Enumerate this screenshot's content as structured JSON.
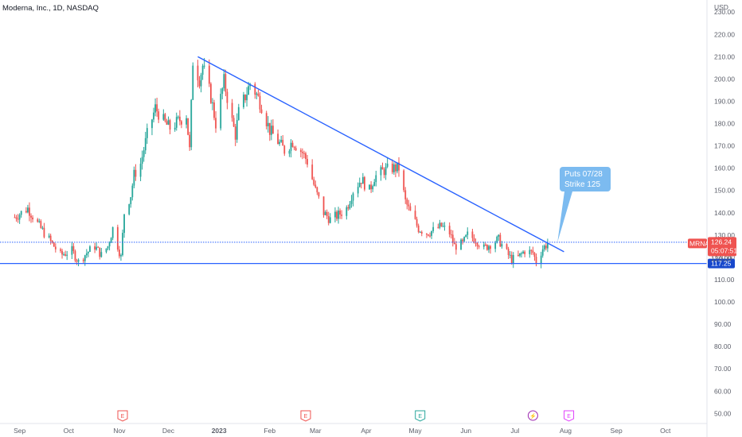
{
  "header": {
    "title": "Moderna, Inc., 1D, NASDAQ",
    "currency": "USD"
  },
  "colors": {
    "up": "#26a69a",
    "down": "#ef5350",
    "trend": "#2962ff",
    "level_tag": "#1848cc",
    "price_tag": "#ef5350",
    "callout": "#7cbbf0",
    "earnings_red": "#ef5350",
    "earnings_green": "#26a69a",
    "dividend": "#9c27b0",
    "future_event": "#e040fb"
  },
  "chart_data": {
    "type": "candlestick",
    "title": "Moderna, Inc., 1D, NASDAQ",
    "ylabel": "USD",
    "ylim": [
      43,
      234
    ],
    "y_ticks": [
      50,
      60,
      70,
      80,
      90,
      100,
      110,
      120,
      130,
      140,
      150,
      160,
      170,
      180,
      190,
      200,
      210,
      220,
      230
    ],
    "x_ticks": [
      {
        "label": "Sep",
        "date": "2022-09-01"
      },
      {
        "label": "Oct",
        "date": "2022-10-01"
      },
      {
        "label": "Nov",
        "date": "2022-11-01"
      },
      {
        "label": "Dec",
        "date": "2022-12-01"
      },
      {
        "label": "2023",
        "date": "2023-01-01"
      },
      {
        "label": "Feb",
        "date": "2023-02-01"
      },
      {
        "label": "Mar",
        "date": "2023-03-01"
      },
      {
        "label": "Apr",
        "date": "2023-04-01"
      },
      {
        "label": "May",
        "date": "2023-05-01"
      },
      {
        "label": "Jun",
        "date": "2023-06-01"
      },
      {
        "label": "Jul",
        "date": "2023-07-01"
      },
      {
        "label": "Aug",
        "date": "2023-08-01"
      },
      {
        "label": "Sep",
        "date": "2023-09-01"
      },
      {
        "label": "Oct",
        "date": "2023-10-01"
      }
    ],
    "grid": false,
    "price_path": [
      [
        "2022-08-29",
        138
      ],
      [
        "2022-09-06",
        142
      ],
      [
        "2022-09-13",
        134
      ],
      [
        "2022-09-19",
        128
      ],
      [
        "2022-09-26",
        121
      ],
      [
        "2022-10-03",
        123
      ],
      [
        "2022-10-07",
        118
      ],
      [
        "2022-10-12",
        122
      ],
      [
        "2022-10-17",
        125
      ],
      [
        "2022-10-21",
        121
      ],
      [
        "2022-10-25",
        125
      ],
      [
        "2022-10-28",
        133
      ],
      [
        "2022-11-02",
        120
      ],
      [
        "2022-11-04",
        140
      ],
      [
        "2022-11-08",
        148
      ],
      [
        "2022-11-10",
        157
      ],
      [
        "2022-11-14",
        162
      ],
      [
        "2022-11-18",
        175
      ],
      [
        "2022-11-23",
        187
      ],
      [
        "2022-11-29",
        180
      ],
      [
        "2022-12-02",
        178
      ],
      [
        "2022-12-07",
        181
      ],
      [
        "2022-12-12",
        184
      ],
      [
        "2022-12-14",
        168
      ],
      [
        "2022-12-16",
        208
      ],
      [
        "2022-12-20",
        200
      ],
      [
        "2022-12-22",
        206
      ],
      [
        "2022-12-27",
        192
      ],
      [
        "2022-12-30",
        180
      ],
      [
        "2023-01-04",
        199
      ],
      [
        "2023-01-09",
        181
      ],
      [
        "2023-01-11",
        175
      ],
      [
        "2023-01-13",
        185
      ],
      [
        "2023-01-18",
        194
      ],
      [
        "2023-01-20",
        198
      ],
      [
        "2023-01-24",
        193
      ],
      [
        "2023-01-27",
        188
      ],
      [
        "2023-02-01",
        177
      ],
      [
        "2023-02-06",
        172
      ],
      [
        "2023-02-10",
        168
      ],
      [
        "2023-02-15",
        172
      ],
      [
        "2023-02-21",
        167
      ],
      [
        "2023-02-24",
        163
      ],
      [
        "2023-03-01",
        150
      ],
      [
        "2023-03-06",
        140
      ],
      [
        "2023-03-10",
        137
      ],
      [
        "2023-03-15",
        139
      ],
      [
        "2023-03-20",
        142
      ],
      [
        "2023-03-24",
        150
      ],
      [
        "2023-03-29",
        155
      ],
      [
        "2023-04-03",
        150
      ],
      [
        "2023-04-06",
        156
      ],
      [
        "2023-04-12",
        159
      ],
      [
        "2023-04-17",
        160
      ],
      [
        "2023-04-21",
        160
      ],
      [
        "2023-04-25",
        145
      ],
      [
        "2023-04-28",
        140
      ],
      [
        "2023-05-03",
        133
      ],
      [
        "2023-05-08",
        131
      ],
      [
        "2023-05-12",
        132
      ],
      [
        "2023-05-17",
        134
      ],
      [
        "2023-05-22",
        131
      ],
      [
        "2023-05-25",
        125
      ],
      [
        "2023-05-30",
        126
      ],
      [
        "2023-06-02",
        130
      ],
      [
        "2023-06-07",
        128
      ],
      [
        "2023-06-12",
        124
      ],
      [
        "2023-06-16",
        126
      ],
      [
        "2023-06-21",
        128
      ],
      [
        "2023-06-26",
        122
      ],
      [
        "2023-06-29",
        119
      ],
      [
        "2023-07-03",
        120
      ],
      [
        "2023-07-07",
        123
      ],
      [
        "2023-07-12",
        122
      ],
      [
        "2023-07-14",
        118
      ],
      [
        "2023-07-18",
        124
      ],
      [
        "2023-07-21",
        126.24
      ]
    ],
    "horizontal_levels": [
      {
        "price": 126.79,
        "label": "126.79",
        "style": "dotted"
      },
      {
        "price": 117.25,
        "label": "117.25",
        "style": "solid"
      }
    ],
    "trendline": {
      "start": [
        "2022-12-19",
        210
      ],
      "end": [
        "2023-07-31",
        122.5
      ]
    },
    "current_price": {
      "symbol": "MRNA",
      "price": 126.24,
      "price_label": "126.24",
      "countdown": "05:07:51",
      "extra_label": "120.00"
    },
    "callout": {
      "line1": "Puts 07/28",
      "line2": "Strike 125",
      "anchor": [
        "2023-07-27",
        126.8
      ]
    },
    "events": [
      {
        "type": "earnings",
        "label": "E",
        "date": "2022-11-03",
        "color": "earnings_red"
      },
      {
        "type": "earnings",
        "label": "E",
        "date": "2023-02-23",
        "color": "earnings_red"
      },
      {
        "type": "earnings",
        "label": "E",
        "date": "2023-05-04",
        "color": "earnings_green"
      },
      {
        "type": "dividend",
        "label": "⚡",
        "date": "2023-07-12",
        "color": "dividend"
      },
      {
        "type": "earnings",
        "label": "E",
        "date": "2023-08-03",
        "color": "future_event"
      }
    ]
  }
}
